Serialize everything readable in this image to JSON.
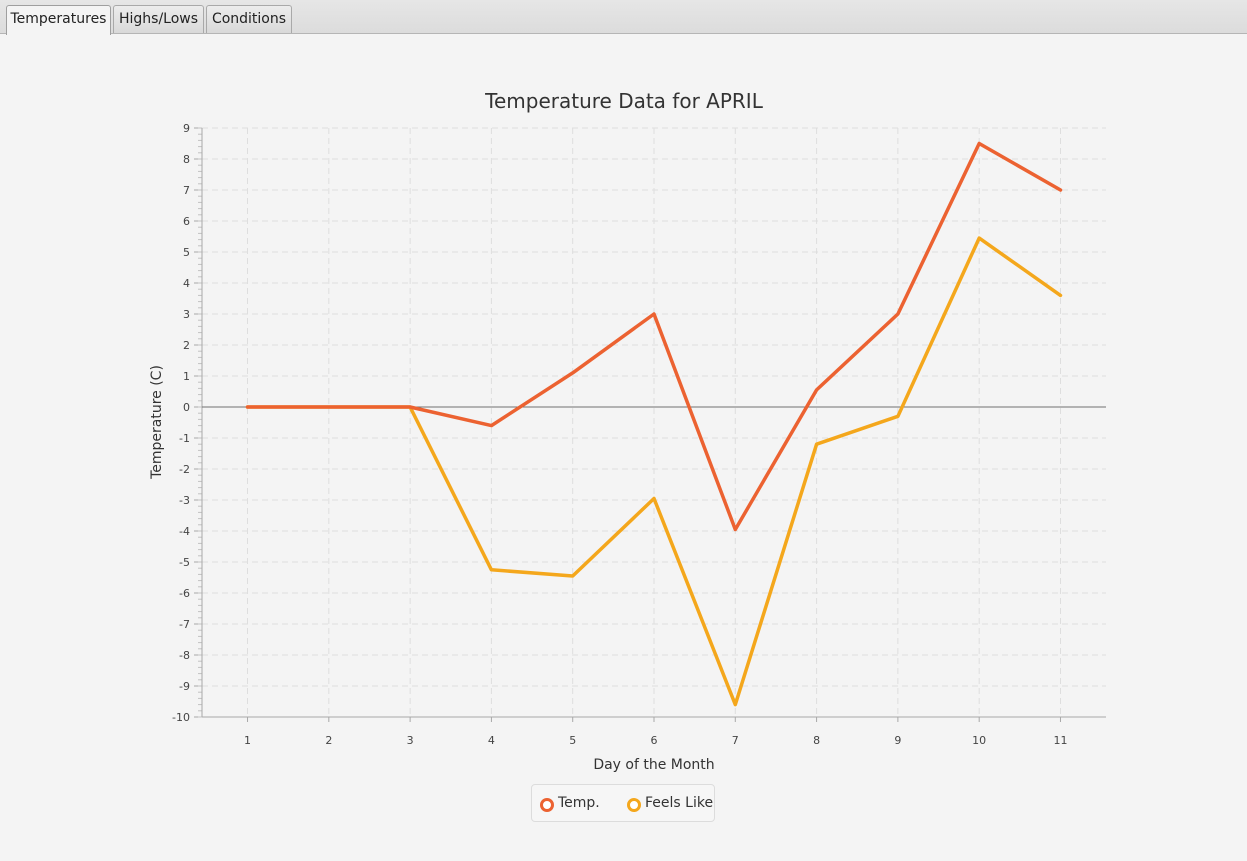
{
  "tabs": [
    {
      "label": "Temperatures",
      "active": true
    },
    {
      "label": "Highs/Lows",
      "active": false
    },
    {
      "label": "Conditions",
      "active": false
    }
  ],
  "colors": {
    "temp": "#ec6231",
    "feels_like": "#f4a71c"
  },
  "chart_data": {
    "type": "line",
    "title": "Temperature Data for APRIL",
    "xlabel": "Day of the Month",
    "ylabel": "Temperature (C)",
    "x": [
      1,
      2,
      3,
      4,
      5,
      6,
      7,
      8,
      9,
      10,
      11
    ],
    "xlim": [
      0.44,
      11.56
    ],
    "ylim": [
      -10,
      9
    ],
    "yticks": [
      9,
      8,
      7,
      6,
      5,
      4,
      3,
      2,
      1,
      0,
      -1,
      -2,
      -3,
      -4,
      -5,
      -6,
      -7,
      -8,
      -9,
      -10
    ],
    "grid": true,
    "legend_position": "bottom",
    "series": [
      {
        "name": "Temp.",
        "values": [
          0,
          0,
          0,
          -0.6,
          1.1,
          3.0,
          -3.95,
          0.55,
          3.0,
          8.5,
          7.0
        ]
      },
      {
        "name": "Feels Like",
        "values": [
          0,
          0,
          0,
          -5.25,
          -5.45,
          -2.95,
          -9.6,
          -1.2,
          -0.3,
          5.45,
          3.6
        ]
      }
    ]
  }
}
